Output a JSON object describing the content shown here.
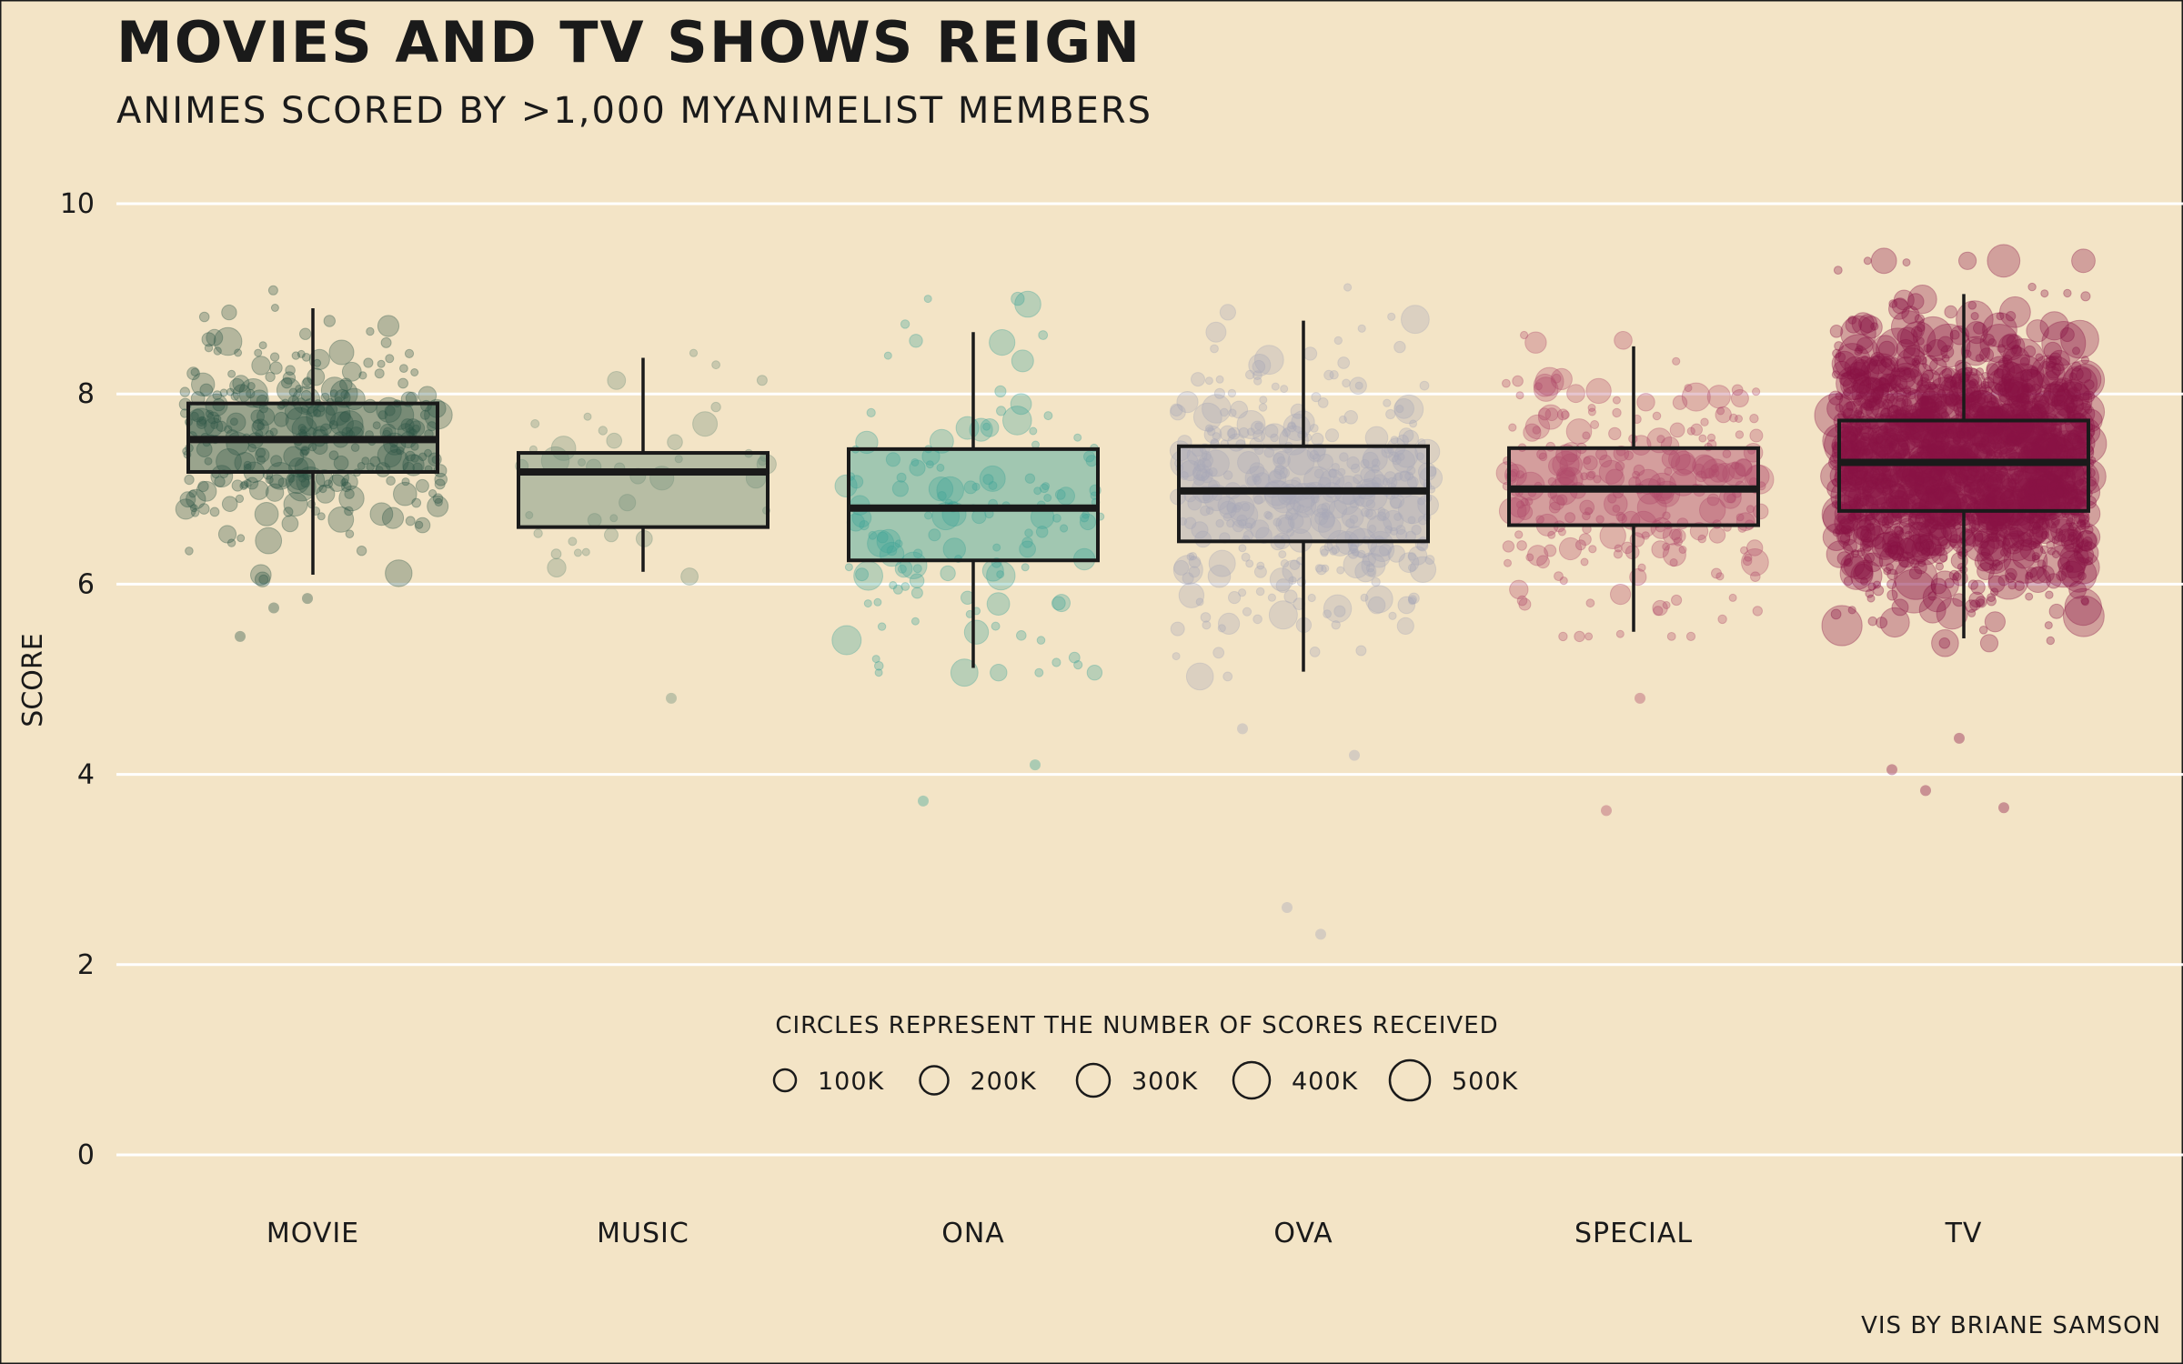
{
  "chart_data": {
    "type": "boxplot",
    "title": "MOVIES AND TV SHOWS REIGN",
    "subtitle": "ANIMES SCORED BY >1,000 MYANIMELIST MEMBERS",
    "ylabel": "SCORE",
    "caption": "VIS BY BRIANE SAMSON",
    "ylim": [
      0,
      10
    ],
    "y_ticks": [
      0,
      2,
      4,
      6,
      8,
      10
    ],
    "y_tick_labels": [
      "0",
      "2",
      "4",
      "6",
      "8",
      "10"
    ],
    "grid": true,
    "categories": [
      "MOVIE",
      "MUSIC",
      "ONA",
      "OVA",
      "SPECIAL",
      "TV"
    ],
    "colors": {
      "background": "#f3e4c6",
      "grid": "#ffffff",
      "outline": "#1a1a1a",
      "MOVIE": "#2f5748",
      "MUSIC": "#6f8f7a",
      "ONA": "#3fa497",
      "OVA": "#a8a8b8",
      "SPECIAL": "#b04a6a",
      "TV": "#8a1345"
    },
    "box_fill_opacity": 0.45,
    "boxes": [
      {
        "category": "MOVIE",
        "whisker_low": 6.1,
        "q1": 7.18,
        "median": 7.52,
        "q3": 7.9,
        "whisker_high": 8.9
      },
      {
        "category": "MUSIC",
        "whisker_low": 6.13,
        "q1": 6.6,
        "median": 7.18,
        "q3": 7.38,
        "whisker_high": 8.38
      },
      {
        "category": "ONA",
        "whisker_low": 5.12,
        "q1": 6.25,
        "median": 6.8,
        "q3": 7.42,
        "whisker_high": 8.65
      },
      {
        "category": "OVA",
        "whisker_low": 5.08,
        "q1": 6.45,
        "median": 6.98,
        "q3": 7.45,
        "whisker_high": 8.77
      },
      {
        "category": "SPECIAL",
        "whisker_low": 5.5,
        "q1": 6.62,
        "median": 7.0,
        "q3": 7.43,
        "whisker_high": 8.5
      },
      {
        "category": "TV",
        "whisker_low": 5.43,
        "q1": 6.77,
        "median": 7.28,
        "q3": 7.72,
        "whisker_high": 9.05
      }
    ],
    "point_counts": {
      "MOVIE": 320,
      "MUSIC": 40,
      "ONA": 140,
      "OVA": 420,
      "SPECIAL": 260,
      "TV": 1500
    },
    "outliers": [
      {
        "category": "MOVIE",
        "y": 5.45
      },
      {
        "category": "MOVIE",
        "y": 5.75
      },
      {
        "category": "MOVIE",
        "y": 5.85
      },
      {
        "category": "MUSIC",
        "y": 4.8
      },
      {
        "category": "ONA",
        "y": 4.1
      },
      {
        "category": "ONA",
        "y": 3.72
      },
      {
        "category": "OVA",
        "y": 2.6
      },
      {
        "category": "OVA",
        "y": 2.32
      },
      {
        "category": "OVA",
        "y": 4.2
      },
      {
        "category": "OVA",
        "y": 4.48
      },
      {
        "category": "SPECIAL",
        "y": 3.62
      },
      {
        "category": "SPECIAL",
        "y": 4.8
      },
      {
        "category": "TV",
        "y": 3.65
      },
      {
        "category": "TV",
        "y": 4.05
      },
      {
        "category": "TV",
        "y": 3.83
      },
      {
        "category": "TV",
        "y": 4.38
      }
    ],
    "size_legend": {
      "title": "CIRCLES REPRESENT THE NUMBER OF SCORES RECEIVED",
      "entries": [
        {
          "label": "100K",
          "value": 100000
        },
        {
          "label": "200K",
          "value": 200000
        },
        {
          "label": "300K",
          "value": 300000
        },
        {
          "label": "400K",
          "value": 400000
        },
        {
          "label": "500K",
          "value": 500000
        }
      ]
    }
  }
}
